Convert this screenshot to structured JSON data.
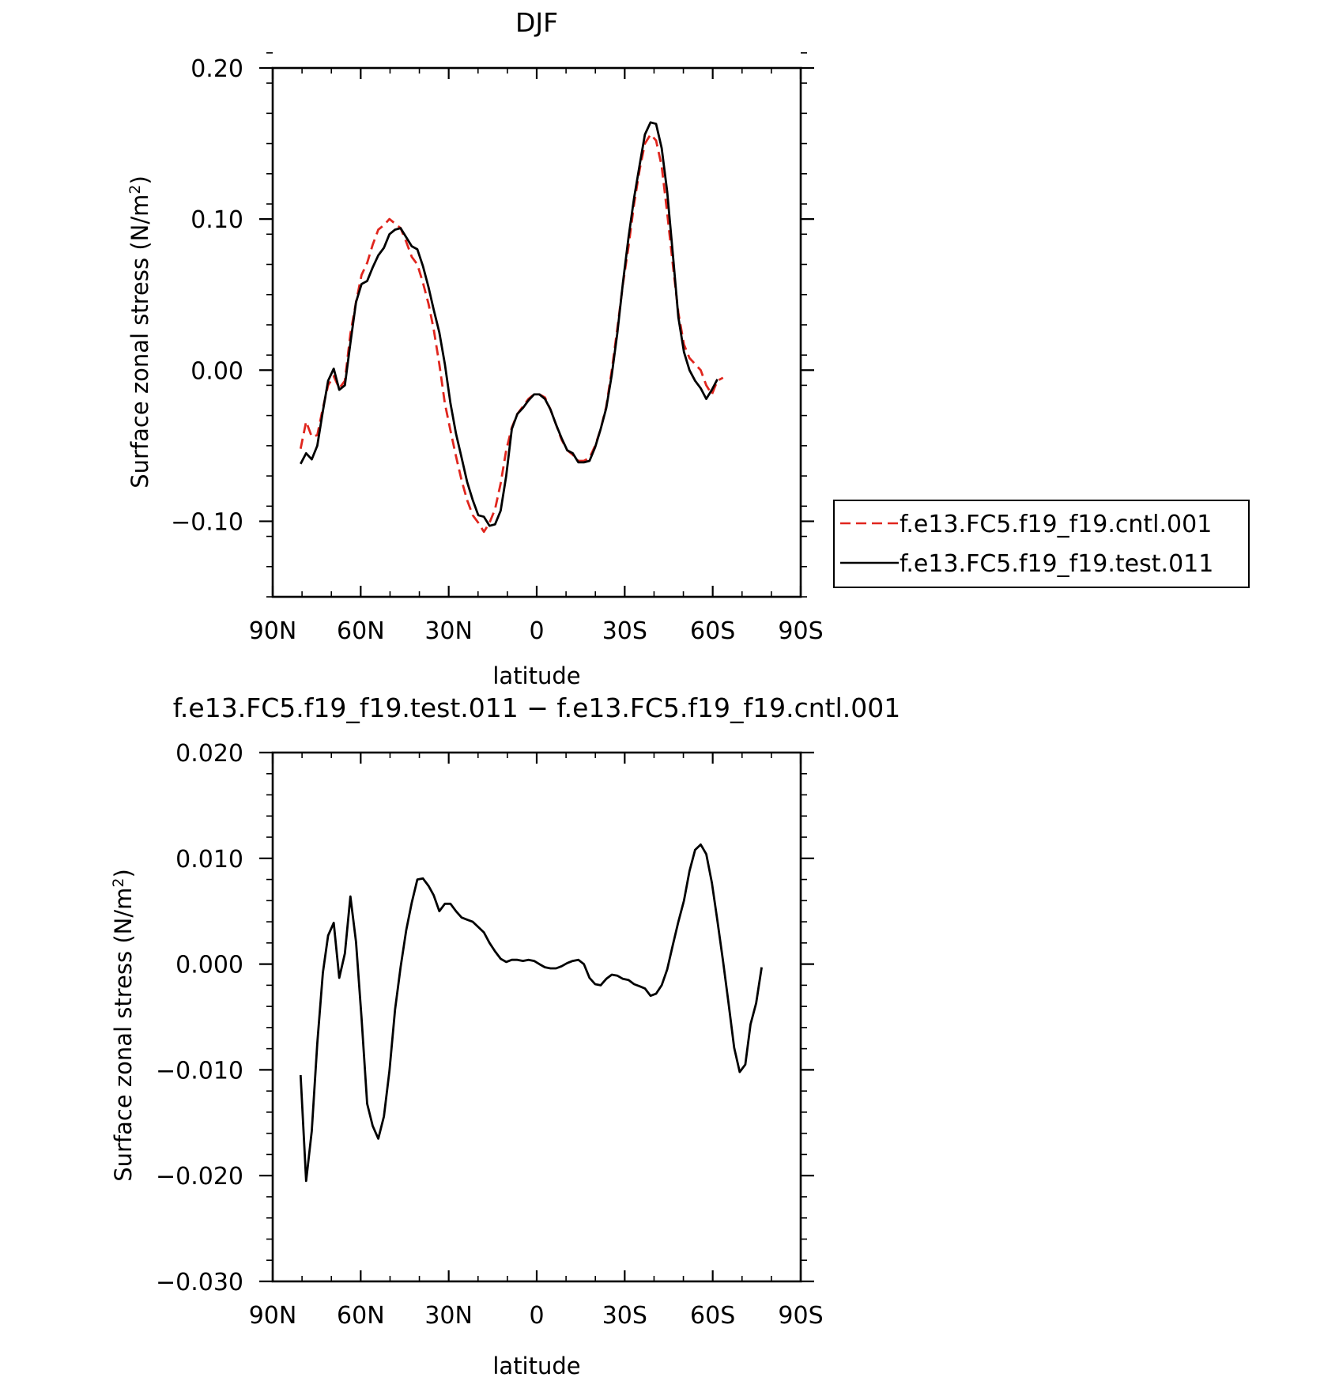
{
  "figure": {
    "colors": {
      "cntl": "#e0261e",
      "test": "#000000",
      "axis": "#000000"
    }
  },
  "chart_data": [
    {
      "type": "line",
      "title": "DJF",
      "xlabel": "latitude",
      "ylabel": "Surface zonal stress (N/m²)",
      "ylabel_main": "Surface zonal stress (N/m",
      "ylabel_sup": "2",
      "ylabel_close": ")",
      "xlim": [
        90,
        -90
      ],
      "ylim": [
        -0.15,
        0.2
      ],
      "xticks": [
        90,
        60,
        30,
        0,
        -30,
        -60,
        -90
      ],
      "xtick_labels": [
        "90N",
        "60N",
        "30N",
        "0",
        "30S",
        "60S",
        "90S"
      ],
      "yticks": [
        0.2,
        0.1,
        0.0,
        -0.1
      ],
      "ytick_labels": [
        "0.20",
        "0.10",
        "0.00",
        "−0.10"
      ],
      "legend_position": "right",
      "series": [
        {
          "name": "f.e13.FC5.f19_f19.cntl.001",
          "style": "dashed",
          "x": [
            80.5,
            78.6,
            76.7,
            74.8,
            72.9,
            71.1,
            69.2,
            67.3,
            65.4,
            63.5,
            61.6,
            59.7,
            57.8,
            55.9,
            54.0,
            52.1,
            50.2,
            48.3,
            46.4,
            44.5,
            42.6,
            40.7,
            38.8,
            36.9,
            35.1,
            33.2,
            31.3,
            29.4,
            27.5,
            25.6,
            23.7,
            21.8,
            19.9,
            18.0,
            16.1,
            14.2,
            12.3,
            10.4,
            8.5,
            6.6,
            4.7,
            2.8,
            0.9,
            -0.9,
            -2.8,
            -4.7,
            -6.6,
            -8.5,
            -10.4,
            -12.3,
            -14.2,
            -16.1,
            -18.0,
            -19.9,
            -21.8,
            -23.7,
            -25.6,
            -27.5,
            -29.4,
            -31.3,
            -33.2,
            -35.1,
            -36.9,
            -38.8,
            -40.7,
            -42.6,
            -44.5,
            -46.4,
            -48.3,
            -50.2,
            -52.1,
            -54.0,
            -55.9,
            -57.8,
            -59.7,
            -61.6,
            -63.5,
            -65.4,
            -67.3,
            -69.2,
            -71.1,
            -72.9,
            -74.8,
            -76.7
          ],
          "y": [
            -0.052,
            -0.034,
            -0.044,
            -0.043,
            -0.025,
            -0.01,
            -0.004,
            -0.012,
            -0.007,
            0.024,
            0.045,
            0.063,
            0.071,
            0.083,
            0.093,
            0.096,
            0.1,
            0.097,
            0.094,
            0.085,
            0.075,
            0.07,
            0.058,
            0.044,
            0.027,
            0.004,
            -0.022,
            -0.04,
            -0.057,
            -0.073,
            -0.086,
            -0.096,
            -0.101,
            -0.107,
            -0.101,
            -0.092,
            -0.075,
            -0.053,
            -0.038,
            -0.029,
            -0.024,
            -0.019,
            -0.016,
            -0.016,
            -0.018,
            -0.026,
            -0.036,
            -0.046,
            -0.053,
            -0.056,
            -0.06,
            -0.06,
            -0.058,
            -0.05,
            -0.039,
            -0.024,
            0.0,
            0.028,
            0.057,
            0.082,
            0.11,
            0.133,
            0.15,
            0.156,
            0.152,
            0.135,
            0.104,
            0.07,
            0.038,
            0.017,
            0.008,
            0.004,
            0.0,
            -0.01,
            -0.016,
            -0.007,
            -0.005,
            null,
            null,
            null,
            null,
            null,
            null,
            null
          ]
        },
        {
          "name": "f.e13.FC5.f19_f19.test.011",
          "style": "solid",
          "x": [
            80.5,
            78.6,
            76.7,
            74.8,
            72.9,
            71.1,
            69.2,
            67.3,
            65.4,
            63.5,
            61.6,
            59.7,
            57.8,
            55.9,
            54.0,
            52.1,
            50.2,
            48.3,
            46.4,
            44.5,
            42.6,
            40.7,
            38.8,
            36.9,
            35.1,
            33.2,
            31.3,
            29.4,
            27.5,
            25.6,
            23.7,
            21.8,
            19.9,
            18.0,
            16.1,
            14.2,
            12.3,
            10.4,
            8.5,
            6.6,
            4.7,
            2.8,
            0.9,
            -0.9,
            -2.8,
            -4.7,
            -6.6,
            -8.5,
            -10.4,
            -12.3,
            -14.2,
            -16.1,
            -18.0,
            -19.9,
            -21.8,
            -23.7,
            -25.6,
            -27.5,
            -29.4,
            -31.3,
            -33.2,
            -35.1,
            -36.9,
            -38.8,
            -40.7,
            -42.6,
            -44.5,
            -46.4,
            -48.3,
            -50.2,
            -52.1,
            -54.0,
            -55.9,
            -57.8,
            -59.7,
            -61.6,
            -63.5,
            -65.4,
            -67.3,
            -69.2,
            -71.1,
            -72.9,
            -74.8,
            -76.7
          ],
          "y": [
            -0.062,
            -0.055,
            -0.059,
            -0.05,
            -0.027,
            -0.007,
            0.001,
            -0.013,
            -0.01,
            0.018,
            0.045,
            0.057,
            0.059,
            0.068,
            0.076,
            0.081,
            0.09,
            0.093,
            0.094,
            0.088,
            0.082,
            0.08,
            0.069,
            0.055,
            0.04,
            0.025,
            0.004,
            -0.022,
            -0.042,
            -0.058,
            -0.074,
            -0.086,
            -0.096,
            -0.097,
            -0.103,
            -0.102,
            -0.093,
            -0.07,
            -0.039,
            -0.029,
            -0.025,
            -0.02,
            -0.016,
            -0.016,
            -0.019,
            -0.026,
            -0.036,
            -0.045,
            -0.053,
            -0.055,
            -0.061,
            -0.061,
            -0.06,
            -0.051,
            -0.039,
            -0.025,
            -0.003,
            0.025,
            0.058,
            0.088,
            0.114,
            0.136,
            0.156,
            0.164,
            0.163,
            0.147,
            0.118,
            0.077,
            0.035,
            0.012,
            0.0,
            -0.007,
            -0.012,
            -0.019,
            -0.013,
            -0.006,
            null,
            null,
            null,
            null,
            null,
            null,
            null,
            null
          ]
        }
      ]
    },
    {
      "type": "line",
      "title": "f.e13.FC5.f19_f19.test.011 − f.e13.FC5.f19_f19.cntl.001",
      "xlabel": "latitude",
      "ylabel": "Surface zonal stress (N/m²)",
      "ylabel_main": "Surface zonal stress (N/m",
      "ylabel_sup": "2",
      "ylabel_close": ")",
      "xlim": [
        90,
        -90
      ],
      "ylim": [
        -0.03,
        0.02
      ],
      "xticks": [
        90,
        60,
        30,
        0,
        -30,
        -60,
        -90
      ],
      "xtick_labels": [
        "90N",
        "60N",
        "30N",
        "0",
        "30S",
        "60S",
        "90S"
      ],
      "yticks": [
        0.02,
        0.01,
        0.0,
        -0.01,
        -0.02,
        -0.03
      ],
      "ytick_labels": [
        "0.020",
        "0.010",
        "0.000",
        "−0.010",
        "−0.020",
        "−0.030"
      ],
      "series": [
        {
          "style": "solid",
          "x": [
            80.5,
            78.6,
            76.7,
            74.8,
            72.9,
            71.1,
            69.2,
            67.3,
            65.4,
            63.5,
            61.6,
            59.7,
            57.8,
            55.9,
            54.0,
            52.1,
            50.2,
            48.3,
            46.4,
            44.5,
            42.6,
            40.7,
            38.8,
            36.9,
            35.1,
            33.2,
            31.3,
            29.4,
            27.5,
            25.6,
            23.7,
            21.8,
            19.9,
            18.0,
            16.1,
            14.2,
            12.3,
            10.4,
            8.5,
            6.6,
            4.7,
            2.8,
            0.9,
            -0.9,
            -2.8,
            -4.7,
            -6.6,
            -8.5,
            -10.4,
            -12.3,
            -14.2,
            -16.1,
            -18.0,
            -19.9,
            -21.8,
            -23.7,
            -25.6,
            -27.5,
            -29.4,
            -31.3,
            -33.2,
            -35.1,
            -36.9,
            -38.8,
            -40.7,
            -42.6,
            -44.5,
            -46.4,
            -48.3,
            -50.2,
            -52.1,
            -54.0,
            -55.9,
            -57.8,
            -59.7,
            -61.6,
            -63.5,
            -65.4,
            -67.3,
            -69.2,
            -71.1,
            -72.9,
            -74.8,
            -76.7
          ],
          "y": [
            -0.0105,
            -0.0205,
            -0.0158,
            -0.0075,
            -0.0008,
            0.0027,
            0.0039,
            -0.0013,
            0.001,
            0.0064,
            0.0021,
            -0.0051,
            -0.0132,
            -0.0153,
            -0.0165,
            -0.0144,
            -0.0101,
            -0.0043,
            -0.0003,
            0.0032,
            0.0058,
            0.008,
            0.0081,
            0.0074,
            0.0065,
            0.005,
            0.0057,
            0.0057,
            0.005,
            0.0044,
            0.0042,
            0.004,
            0.0035,
            0.003,
            0.002,
            0.0012,
            0.0005,
            0.0002,
            0.0004,
            0.0004,
            0.0003,
            0.0004,
            0.0003,
            0.0,
            -0.0003,
            -0.0004,
            -0.0004,
            -0.0002,
            0.0001,
            0.0003,
            0.0004,
            0.0,
            -0.0013,
            -0.0019,
            -0.002,
            -0.0014,
            -0.001,
            -0.0011,
            -0.0014,
            -0.0015,
            -0.0019,
            -0.0021,
            -0.0023,
            -0.003,
            -0.0028,
            -0.002,
            -0.0005,
            0.0018,
            0.004,
            0.006,
            0.0088,
            0.0108,
            0.0113,
            0.0104,
            0.0077,
            0.0041,
            0.0003,
            -0.0037,
            -0.0079,
            -0.0102,
            -0.0095,
            -0.0057,
            -0.0037,
            -0.0003
          ]
        }
      ]
    }
  ]
}
